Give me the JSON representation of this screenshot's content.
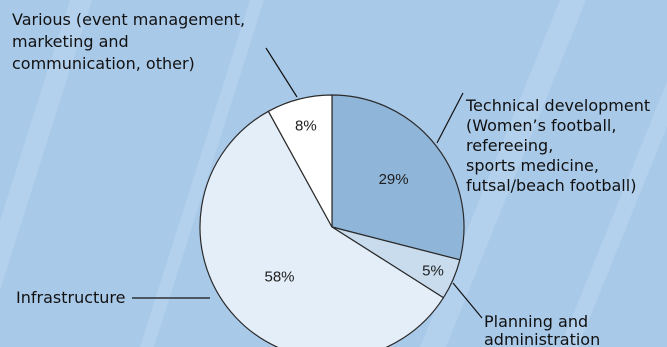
{
  "colors": {
    "background": "#a9c9e9",
    "stripe": "#bcd7f1"
  },
  "chart_data": {
    "type": "pie",
    "title": "",
    "slices": [
      {
        "label_lines": [
          "Technical development",
          "(Women’s football,",
          "refereeing,",
          "sports medicine,",
          "futsal/beach football)"
        ],
        "value": 29,
        "value_label": "29%",
        "color": "#8fb5d9"
      },
      {
        "label_lines": [
          "Planning and",
          "administration"
        ],
        "value": 5,
        "value_label": "5%",
        "color": "#c9dcee"
      },
      {
        "label_lines": [
          "Infrastructure"
        ],
        "value": 58,
        "value_label": "58%",
        "color": "#e4eef8"
      },
      {
        "label_lines": [
          "Various (event management,",
          "marketing and",
          "communication, other)"
        ],
        "value": 8,
        "value_label": "8%",
        "color": "#ffffff"
      }
    ]
  }
}
